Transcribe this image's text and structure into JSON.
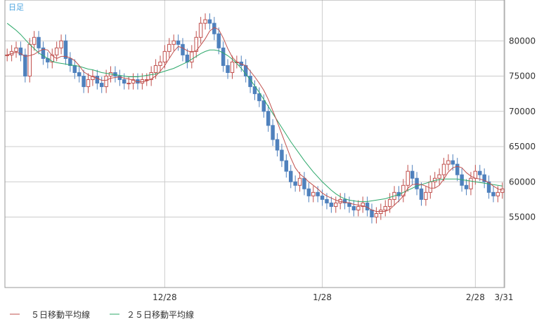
{
  "period_label": "日足",
  "legend": {
    "ma5_label": "５日移動平均線",
    "ma25_label": "２５日移動平均線"
  },
  "colors": {
    "up": "#c0504d",
    "down": "#4f81bd",
    "ma5": "#c0504d",
    "ma25": "#2ca86a",
    "grid": "#cccccc",
    "frame": "#999999",
    "period": "#4aa3df"
  },
  "chart_data": {
    "type": "candlestick",
    "title": "",
    "xlabel": "",
    "ylabel": "",
    "x_tick_labels": [
      "12/28",
      "1/28",
      "2/28",
      "3/31"
    ],
    "x_tick_index": [
      35,
      70,
      104,
      139
    ],
    "y_ticks": [
      55000,
      60000,
      65000,
      70000,
      75000,
      80000
    ],
    "ylim": [
      45000,
      85800
    ],
    "grid": true,
    "legend_position": "bottom-left",
    "close": [
      78000,
      78500,
      79000,
      78000,
      75000,
      79500,
      80500,
      79000,
      77500,
      77000,
      78000,
      79000,
      80000,
      77500,
      76500,
      75500,
      75000,
      73500,
      74500,
      75000,
      74000,
      73500,
      75000,
      75500,
      75000,
      74500,
      74000,
      74000,
      74500,
      74000,
      74500,
      74500,
      75500,
      76500,
      77000,
      78500,
      79500,
      80000,
      79500,
      78000,
      77000,
      78500,
      80500,
      82500,
      83000,
      82500,
      81000,
      79000,
      76500,
      75500,
      77000,
      77000,
      76500,
      75000,
      73500,
      72500,
      71500,
      70000,
      68000,
      66000,
      64500,
      63000,
      61500,
      60000,
      59500,
      60500,
      59000,
      58000,
      58500,
      58000,
      57500,
      57000,
      56500,
      57000,
      57500,
      57000,
      56500,
      56000,
      56500,
      57000,
      56000,
      55000,
      55500,
      56000,
      56500,
      57500,
      58500,
      58000,
      59500,
      61500,
      60500,
      59000,
      57500,
      58500,
      60000,
      60500,
      61000,
      62500,
      63000,
      62500,
      61000,
      59500,
      59000,
      60500,
      61500,
      61000,
      60000,
      58500,
      58000,
      58500,
      59000
    ],
    "ma5": [
      78000,
      78200,
      78400,
      78200,
      77800,
      77900,
      78100,
      78500,
      78800,
      78700,
      77900,
      77500,
      77800,
      77800,
      77600,
      77200,
      76500,
      75600,
      75200,
      74900,
      74700,
      74400,
      74400,
      74700,
      74800,
      74900,
      74700,
      74600,
      74400,
      74200,
      74200,
      74300,
      74600,
      75000,
      75700,
      76500,
      77500,
      78500,
      79200,
      79000,
      78600,
      78400,
      78600,
      79400,
      80300,
      81400,
      81900,
      81600,
      80400,
      78900,
      77700,
      77000,
      76700,
      76500,
      75700,
      74900,
      74000,
      73000,
      71700,
      70100,
      68500,
      66800,
      65100,
      63400,
      62000,
      61100,
      60600,
      60000,
      59500,
      59000,
      58400,
      58000,
      57700,
      57400,
      57200,
      57100,
      57000,
      56800,
      56700,
      56600,
      56400,
      56000,
      55800,
      55800,
      55800,
      56100,
      56700,
      57300,
      58000,
      59100,
      59600,
      59700,
      59600,
      59400,
      59100,
      59100,
      59500,
      60400,
      61400,
      62000,
      62200,
      62000,
      61300,
      60800,
      60500,
      60400,
      60200,
      59900,
      59400,
      59000,
      58800
    ],
    "ma25": [
      82500,
      82000,
      81500,
      80900,
      80200,
      79500,
      78900,
      78300,
      77900,
      77500,
      77100,
      76900,
      76800,
      76700,
      76600,
      76500,
      76400,
      76200,
      76000,
      75900,
      75700,
      75500,
      75400,
      75300,
      75200,
      75100,
      75000,
      74900,
      74900,
      74900,
      75000,
      75100,
      75200,
      75300,
      75500,
      75700,
      75900,
      76100,
      76400,
      76700,
      77000,
      77400,
      77800,
      78200,
      78500,
      78700,
      78700,
      78600,
      78300,
      77900,
      77400,
      76800,
      76100,
      75300,
      74500,
      73600,
      72700,
      71700,
      70700,
      69700,
      68700,
      67700,
      66700,
      65700,
      64800,
      63900,
      63000,
      62200,
      61400,
      60700,
      60000,
      59400,
      58800,
      58300,
      57900,
      57600,
      57400,
      57300,
      57200,
      57200,
      57200,
      57300,
      57400,
      57500,
      57600,
      57800,
      58000,
      58200,
      58500,
      58800,
      59100,
      59400,
      59600,
      59800,
      60000,
      60200,
      60300,
      60400,
      60400,
      60400,
      60400,
      60300,
      60200,
      60100,
      60000,
      59900,
      59800,
      59700,
      59600,
      59500,
      59400
    ]
  }
}
